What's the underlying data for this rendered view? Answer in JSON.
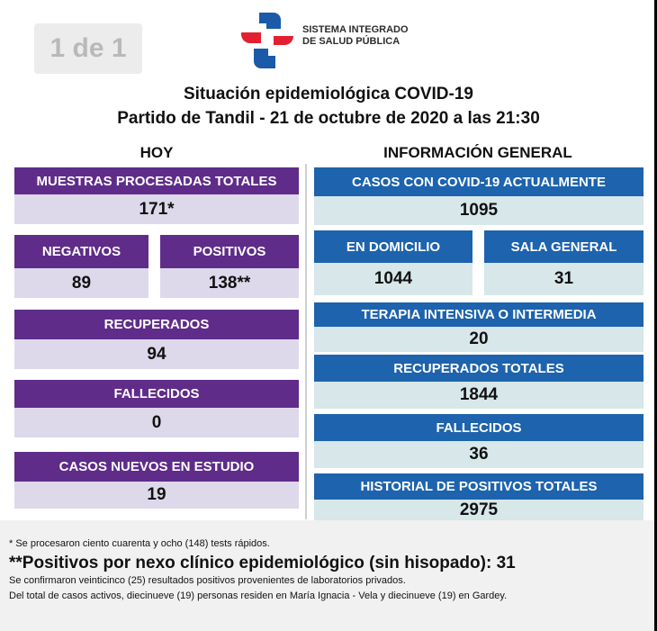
{
  "page_badge": "1 de 1",
  "logo": {
    "line1": "SISTEMA INTEGRADO",
    "line2": "DE SALUD PÚBLICA",
    "colors": {
      "red": "#e2202f",
      "blue": "#1a5aa8"
    }
  },
  "title": {
    "line1": "Situación epidemiológica COVID-19",
    "line2": "Partido de Tandil - 21 de octubre de 2020 a las 21:30"
  },
  "hoy": {
    "heading": "HOY",
    "muestras": {
      "label": "MUESTRAS PROCESADAS TOTALES",
      "value": "171*"
    },
    "negativos": {
      "label": "NEGATIVOS",
      "value": "89"
    },
    "positivos": {
      "label": "POSITIVOS",
      "value": "138**"
    },
    "recuperados": {
      "label": "RECUPERADOS",
      "value": "94"
    },
    "fallecidos": {
      "label": "FALLECIDOS",
      "value": "0"
    },
    "nuevos": {
      "label": "CASOS NUEVOS EN ESTUDIO",
      "value": "19"
    }
  },
  "general": {
    "heading": "INFORMACIÓN GENERAL",
    "actuales": {
      "label": "CASOS CON COVID-19 ACTUALMENTE",
      "value": "1095"
    },
    "domicilio": {
      "label": "EN DOMICILIO",
      "value": "1044"
    },
    "sala": {
      "label": "SALA GENERAL",
      "value": "31"
    },
    "terapia": {
      "label": "TERAPIA INTENSIVA O INTERMEDIA",
      "value": "20"
    },
    "recuperados": {
      "label": "RECUPERADOS TOTALES",
      "value": "1844"
    },
    "fallecidos": {
      "label": "FALLECIDOS",
      "value": "36"
    },
    "historial": {
      "label": "HISTORIAL DE POSITIVOS TOTALES",
      "value": "2975"
    }
  },
  "footer": {
    "note1": "* Se procesaron ciento cuarenta y ocho (148) tests rápidos.",
    "note2": "**Positivos por nexo clínico epidemiológico (sin hisopado): 31",
    "note3": "Se confirmaron veinticinco (25) resultados positivos provenientes de laboratorios privados.",
    "note4": "Del total de casos activos, diecinueve (19) personas residen en María Ignacia - Vela y diecinueve (19) en Gardey."
  },
  "colors": {
    "purple_header": "#5f2c8a",
    "purple_value": "#ddd8ea",
    "blue_header": "#1d63ad",
    "blue_value": "#d7e7ea"
  }
}
